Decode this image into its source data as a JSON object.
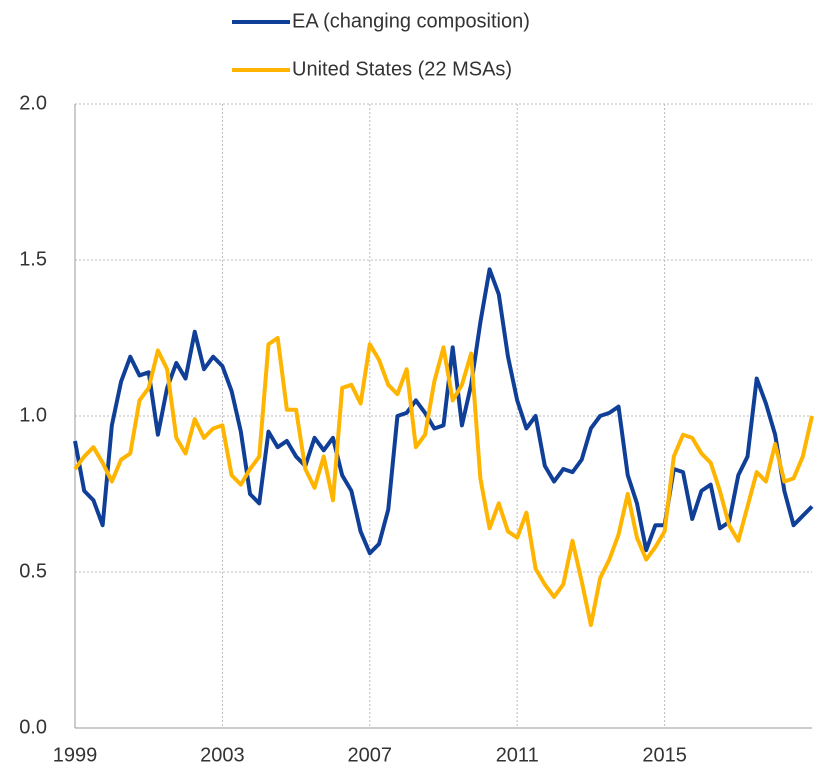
{
  "chart_data": {
    "type": "line",
    "x": [
      1999,
      1999.25,
      1999.5,
      1999.75,
      2000,
      2000.25,
      2000.5,
      2000.75,
      2001,
      2001.25,
      2001.5,
      2001.75,
      2002,
      2002.25,
      2002.5,
      2002.75,
      2003,
      2003.25,
      2003.5,
      2003.75,
      2004,
      2004.25,
      2004.5,
      2004.75,
      2005,
      2005.25,
      2005.5,
      2005.75,
      2006,
      2006.25,
      2006.5,
      2006.75,
      2007,
      2007.25,
      2007.5,
      2007.75,
      2008,
      2008.25,
      2008.5,
      2008.75,
      2009,
      2009.25,
      2009.5,
      2009.75,
      2010,
      2010.25,
      2010.5,
      2010.75,
      2011,
      2011.25,
      2011.5,
      2011.75,
      2012,
      2012.25,
      2012.5,
      2012.75,
      2013,
      2013.25,
      2013.5,
      2013.75,
      2014,
      2014.25,
      2014.5,
      2014.75,
      2015,
      2015.25,
      2015.5,
      2015.75,
      2016,
      2016.25,
      2016.5,
      2016.75,
      2017,
      2017.25,
      2017.5,
      2017.75,
      2018,
      2018.25,
      2018.5,
      2018.75,
      2019
    ],
    "series": [
      {
        "name": "EA (changing composition)",
        "color": "#103f98",
        "values": [
          0.92,
          0.76,
          0.73,
          0.65,
          0.97,
          1.11,
          1.19,
          1.13,
          1.14,
          0.94,
          1.09,
          1.17,
          1.12,
          1.27,
          1.15,
          1.19,
          1.16,
          1.08,
          0.95,
          0.75,
          0.72,
          0.95,
          0.9,
          0.92,
          0.87,
          0.84,
          0.93,
          0.89,
          0.93,
          0.81,
          0.76,
          0.63,
          0.56,
          0.59,
          0.7,
          1.0,
          1.01,
          1.05,
          1.01,
          0.96,
          0.97,
          1.22,
          0.97,
          1.1,
          1.3,
          1.47,
          1.39,
          1.19,
          1.05,
          0.96,
          1.0,
          0.84,
          0.79,
          0.83,
          0.82,
          0.86,
          0.96,
          1.0,
          1.01,
          1.03,
          0.81,
          0.72,
          0.57,
          0.65,
          0.65,
          0.83,
          0.82,
          0.67,
          0.76,
          0.78,
          0.64,
          0.66,
          0.81,
          0.87,
          1.12,
          1.04,
          0.94,
          0.76,
          0.65,
          0.68,
          0.71
        ]
      },
      {
        "name": "United States (22 MSAs)",
        "color": "#ffb400",
        "values": [
          0.83,
          0.87,
          0.9,
          0.85,
          0.79,
          0.86,
          0.88,
          1.05,
          1.09,
          1.21,
          1.15,
          0.93,
          0.88,
          0.99,
          0.93,
          0.96,
          0.97,
          0.81,
          0.78,
          0.83,
          0.87,
          1.23,
          1.25,
          1.02,
          1.02,
          0.83,
          0.77,
          0.87,
          0.73,
          1.09,
          1.1,
          1.04,
          1.23,
          1.18,
          1.1,
          1.07,
          1.15,
          0.9,
          0.94,
          1.11,
          1.22,
          1.05,
          1.1,
          1.2,
          0.8,
          0.64,
          0.72,
          0.63,
          0.61,
          0.69,
          0.51,
          0.46,
          0.42,
          0.46,
          0.6,
          0.47,
          0.33,
          0.48,
          0.54,
          0.62,
          0.75,
          0.61,
          0.54,
          0.58,
          0.63,
          0.87,
          0.94,
          0.93,
          0.88,
          0.85,
          0.76,
          0.65,
          0.6,
          0.71,
          0.82,
          0.79,
          0.91,
          0.79,
          0.8,
          0.87,
          1.0
        ]
      }
    ],
    "xlim": [
      1999,
      2019
    ],
    "xticks": [
      1999,
      2003,
      2007,
      2011,
      2015
    ],
    "ylim": [
      0,
      2
    ],
    "yticks": [
      {
        "value": 0,
        "label": "0.0"
      },
      {
        "value": 0.5,
        "label": "0.5"
      },
      {
        "value": 1,
        "label": "1.0"
      },
      {
        "value": 1.5,
        "label": "1.5"
      },
      {
        "value": 2,
        "label": "2.0"
      }
    ],
    "grid": true,
    "legend": "top"
  }
}
